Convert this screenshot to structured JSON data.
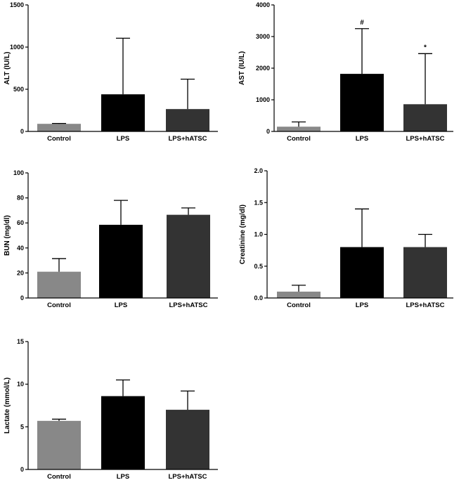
{
  "chart_data": [
    {
      "id": "alt",
      "type": "bar",
      "categories": [
        "Control",
        "LPS",
        "LPS+hATSC"
      ],
      "values": [
        90,
        440,
        265
      ],
      "errors": [
        5,
        665,
        355
      ],
      "colors": [
        "#888888",
        "#000000",
        "#333333"
      ],
      "annotations": [
        "",
        "",
        ""
      ],
      "ylabel": "ALT (IU/L)",
      "ylim": [
        0,
        1500
      ],
      "yticks": [
        "0",
        "500",
        "1000",
        "1500"
      ]
    },
    {
      "id": "ast",
      "type": "bar",
      "categories": [
        "Control",
        "LPS",
        "LPS+hATSC"
      ],
      "values": [
        150,
        1820,
        860
      ],
      "errors": [
        150,
        1430,
        1600
      ],
      "colors": [
        "#888888",
        "#000000",
        "#333333"
      ],
      "annotations": [
        "",
        "#",
        "*"
      ],
      "ylabel": "AST (IU/L)",
      "ylim": [
        0,
        4000
      ],
      "yticks": [
        "0",
        "1000",
        "2000",
        "3000",
        "4000"
      ]
    },
    {
      "id": "bun",
      "type": "bar",
      "categories": [
        "Control",
        "LPS",
        "LPS+hATSC"
      ],
      "values": [
        21,
        58.5,
        66.5
      ],
      "errors": [
        10.5,
        19.5,
        5.5
      ],
      "colors": [
        "#888888",
        "#000000",
        "#333333"
      ],
      "annotations": [
        "",
        "",
        ""
      ],
      "ylabel": "BUN (mg/dl)",
      "ylim": [
        0,
        100
      ],
      "yticks": [
        "0",
        "20",
        "40",
        "60",
        "80",
        "100"
      ]
    },
    {
      "id": "creatinine",
      "type": "bar",
      "categories": [
        "Control",
        "LPS",
        "LPS+hATSC"
      ],
      "values": [
        0.1,
        0.8,
        0.8
      ],
      "errors": [
        0.1,
        0.6,
        0.2
      ],
      "colors": [
        "#888888",
        "#000000",
        "#333333"
      ],
      "annotations": [
        "",
        "",
        ""
      ],
      "ylabel": "Creatinine (mg/dl)",
      "ylim": [
        0,
        2.0
      ],
      "yticks": [
        "0.0",
        "0.5",
        "1.0",
        "1.5",
        "2.0"
      ]
    },
    {
      "id": "lactate",
      "type": "bar",
      "categories": [
        "Control",
        "LPS",
        "LPS+hATSC"
      ],
      "values": [
        5.7,
        8.6,
        7.0
      ],
      "errors": [
        0.2,
        1.9,
        2.2
      ],
      "colors": [
        "#888888",
        "#000000",
        "#333333"
      ],
      "annotations": [
        "",
        "",
        ""
      ],
      "ylabel": "Lactate (mmol/L)",
      "ylim": [
        0,
        15
      ],
      "yticks": [
        "0",
        "5",
        "10",
        "15"
      ]
    }
  ]
}
